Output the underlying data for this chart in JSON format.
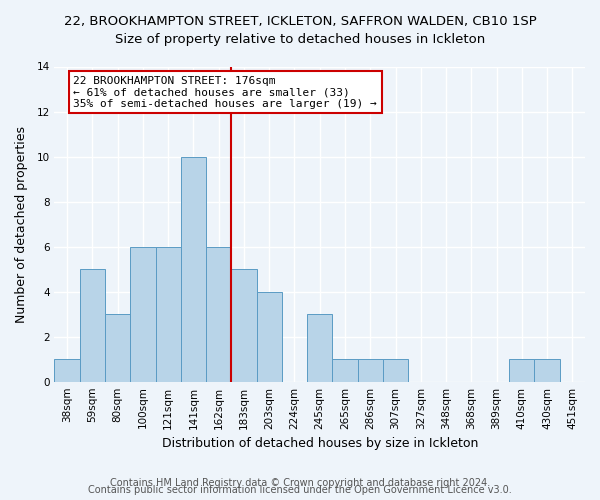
{
  "title_line1": "22, BROOKHAMPTON STREET, ICKLETON, SAFFRON WALDEN, CB10 1SP",
  "title_line2": "Size of property relative to detached houses in Ickleton",
  "xlabel": "Distribution of detached houses by size in Ickleton",
  "ylabel": "Number of detached properties",
  "categories": [
    "38sqm",
    "59sqm",
    "80sqm",
    "100sqm",
    "121sqm",
    "141sqm",
    "162sqm",
    "183sqm",
    "203sqm",
    "224sqm",
    "245sqm",
    "265sqm",
    "286sqm",
    "307sqm",
    "327sqm",
    "348sqm",
    "368sqm",
    "389sqm",
    "410sqm",
    "430sqm",
    "451sqm"
  ],
  "values": [
    1,
    5,
    3,
    6,
    6,
    10,
    6,
    5,
    4,
    0,
    3,
    1,
    1,
    1,
    0,
    0,
    0,
    0,
    1,
    1,
    0
  ],
  "bar_color": "#b8d4e8",
  "bar_edge_color": "#5a9bc4",
  "vline_x": 7,
  "vline_color": "#cc0000",
  "annotation_text": "22 BROOKHAMPTON STREET: 176sqm\n← 61% of detached houses are smaller (33)\n35% of semi-detached houses are larger (19) →",
  "annotation_box_color": "#ffffff",
  "annotation_box_edge": "#cc0000",
  "ylim": [
    0,
    14
  ],
  "yticks": [
    0,
    2,
    4,
    6,
    8,
    10,
    12,
    14
  ],
  "footer_line1": "Contains HM Land Registry data © Crown copyright and database right 2024.",
  "footer_line2": "Contains public sector information licensed under the Open Government Licence v3.0.",
  "bg_color": "#eef4fa",
  "plot_bg_color": "#eef4fa",
  "grid_color": "#ffffff",
  "title_fontsize": 9.5,
  "subtitle_fontsize": 9.5,
  "axis_label_fontsize": 9,
  "tick_fontsize": 7.5,
  "annotation_fontsize": 8,
  "footer_fontsize": 7
}
